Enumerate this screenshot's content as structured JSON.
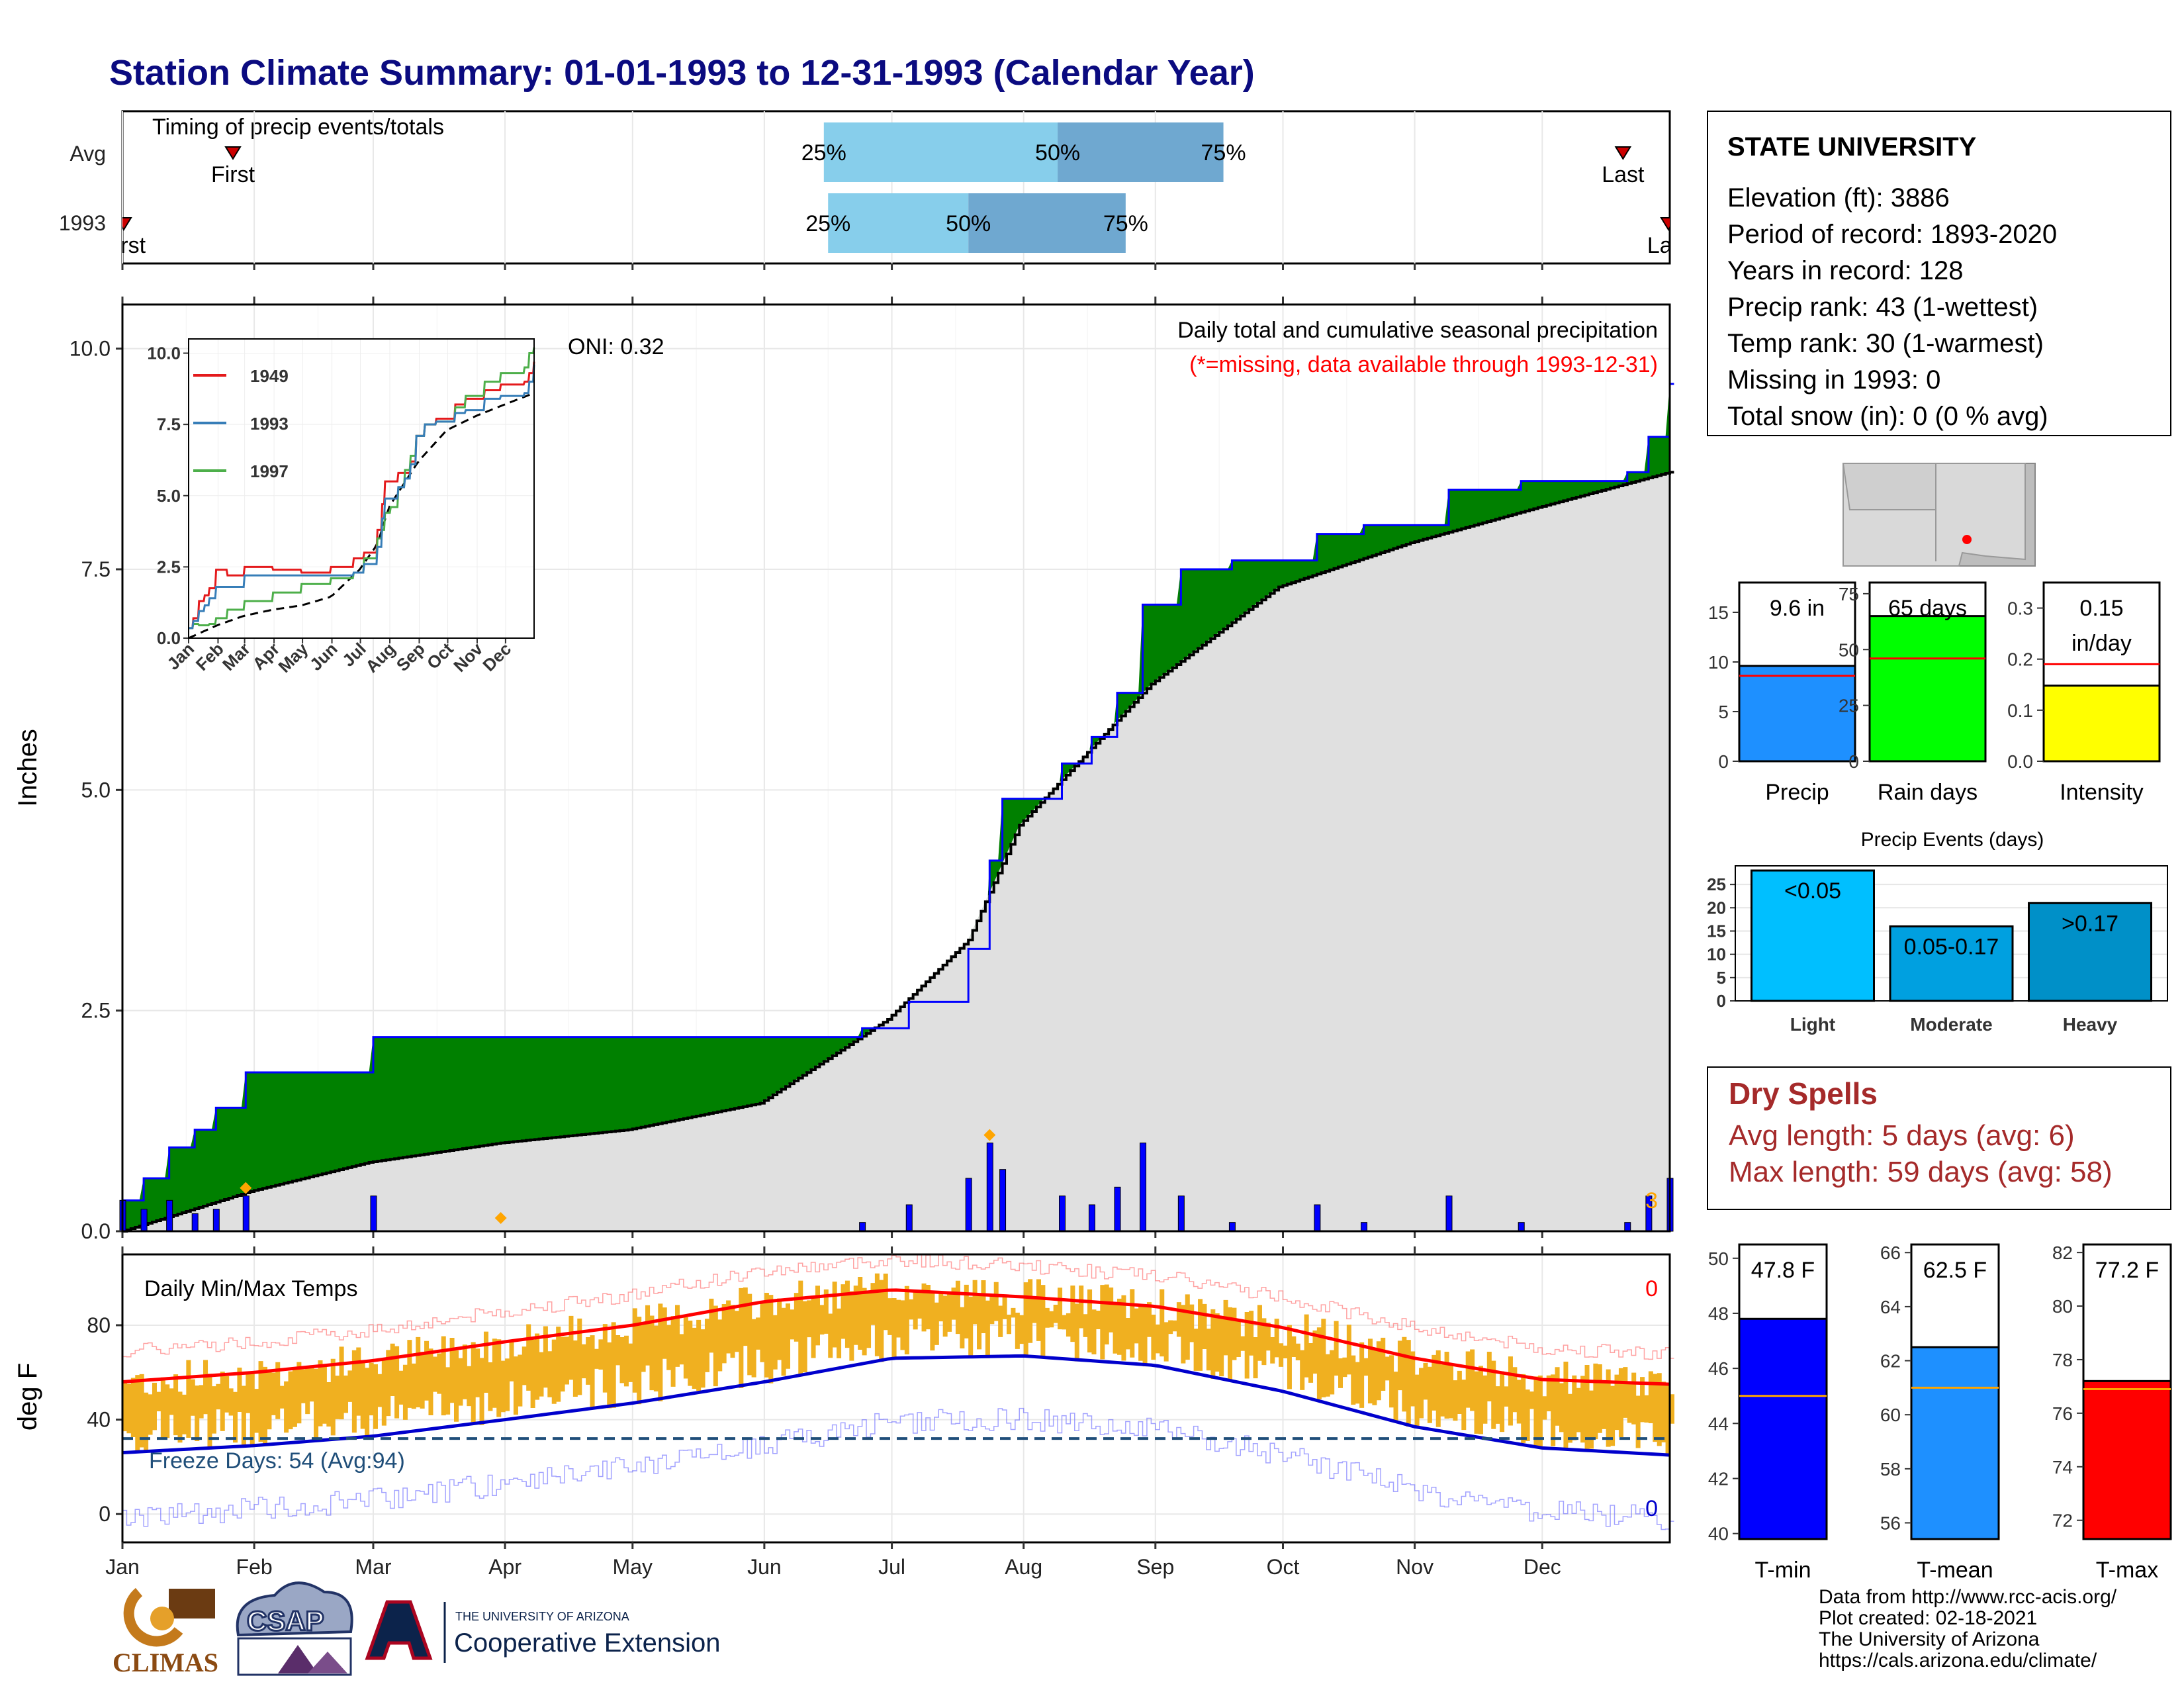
{
  "title": "Station Climate Summary: 01-01-1993 to 12-31-1993 (Calendar Year)",
  "timing_panel": {
    "label": "Timing of precip events/totals",
    "rows": [
      {
        "name": "Avg",
        "first_label": "First",
        "last_label": "Last",
        "p25": "25%",
        "p50": "50%",
        "p75": "75%",
        "first_day": 27,
        "last_day": 354,
        "p25_day": 166,
        "p50_day": 221,
        "p75_day": 260
      },
      {
        "name": "1993",
        "first_label": "First",
        "last_label": "Last",
        "p25": "25%",
        "p50": "50%",
        "p75": "75%",
        "first_day": 1,
        "last_day": 365,
        "p25_day": 167,
        "p50_day": 200,
        "p75_day": 237
      }
    ]
  },
  "main_panel": {
    "ylabel": "Inches",
    "yticks": [
      "0.0",
      "2.5",
      "5.0",
      "7.5",
      "10.0"
    ],
    "annotation_title": "Daily total and cumulative seasonal precipitation",
    "annotation_sub": "(*=missing, data available through 1993-12-31)",
    "oni": "ONI: 0.32",
    "corner_count": "3",
    "colors": {
      "surplus": "#008000",
      "normal": "#e0e0e0",
      "cumulative": "#0000ff",
      "daily_bar": "#0000ff",
      "marker": "#ffa500"
    }
  },
  "inset": {
    "yticks": [
      "0.0",
      "2.5",
      "5.0",
      "7.5",
      "10.0"
    ],
    "months": [
      "Jan",
      "Feb",
      "Mar",
      "Apr",
      "May",
      "Jun",
      "Jul",
      "Aug",
      "Sep",
      "Oct",
      "Nov",
      "Dec"
    ],
    "legend": [
      {
        "name": "1949",
        "color": "#e41a1c"
      },
      {
        "name": "1993",
        "color": "#377eb8"
      },
      {
        "name": "1997",
        "color": "#4daf4a"
      }
    ]
  },
  "temp_panel": {
    "ylabel": "deg F",
    "label": "Daily Min/Max Temps",
    "freeze": "Freeze Days: 54 (Avg:94)",
    "yticks": [
      "0",
      "40",
      "80"
    ],
    "count_top": "0",
    "count_bottom": "0",
    "colors": {
      "bars": "#f0b020",
      "max_line": "#ff0000",
      "min_line": "#0000cc",
      "freeze_line": "#1f4e79"
    }
  },
  "months": [
    "Jan",
    "Feb",
    "Mar",
    "Apr",
    "May",
    "Jun",
    "Jul",
    "Aug",
    "Sep",
    "Oct",
    "Nov",
    "Dec"
  ],
  "station": {
    "name": "STATE UNIVERSITY",
    "lines": [
      "Elevation (ft): 3886",
      "Period of record: 1893-2020",
      "Years in record: 128",
      "Precip rank: 43 (1-wettest)",
      "Temp rank: 30 (1-warmest)",
      "Missing in 1993: 0",
      "Total snow (in): 0 (0 % avg)"
    ]
  },
  "mini_bars": [
    {
      "label": "Precip",
      "value_text": "9.6 in",
      "value": 9.6,
      "avg": 8.6,
      "ymax": 18,
      "ticks": [
        "0",
        "5",
        "10",
        "15"
      ],
      "tick_vals": [
        0,
        5,
        10,
        15
      ],
      "color": "#1e90ff"
    },
    {
      "label": "Rain days",
      "value_text": "65 days",
      "value": 65,
      "avg": 46,
      "ymax": 80,
      "ticks": [
        "0",
        "25",
        "50",
        "75"
      ],
      "tick_vals": [
        0,
        25,
        50,
        75
      ],
      "color": "#00ff00"
    },
    {
      "label": "Intensity",
      "value_text": "0.15",
      "value_text2": "in/day",
      "value": 0.148,
      "avg": 0.19,
      "ymax": 0.35,
      "ticks": [
        "0.0",
        "0.1",
        "0.2",
        "0.3"
      ],
      "tick_vals": [
        0,
        0.1,
        0.2,
        0.3
      ],
      "color": "#ffff00"
    }
  ],
  "precip_events": {
    "title": "Precip Events (days)",
    "ticks": [
      "0",
      "5",
      "10",
      "15",
      "20",
      "25"
    ],
    "categories": [
      "Light",
      "Moderate",
      "Heavy"
    ],
    "bar_labels": [
      "<0.05",
      "0.05-0.17",
      ">0.17"
    ],
    "values": [
      28,
      16,
      21
    ],
    "colors": [
      "#00bfff",
      "#00a0e0",
      "#0090c8"
    ]
  },
  "dry_spells": {
    "title": "Dry Spells",
    "avg": "Avg length: 5 days (avg: 6)",
    "max": "Max length: 59 days (avg: 58)"
  },
  "temp_bars": [
    {
      "label": "T-min",
      "value_text": "47.8 F",
      "value": 47.8,
      "avg": 45.0,
      "ymin": 39.8,
      "ymax": 50.5,
      "ticks": [
        "40",
        "42",
        "44",
        "46",
        "48",
        "50"
      ],
      "tick_vals": [
        40,
        42,
        44,
        46,
        48,
        50
      ],
      "color": "#0000ff"
    },
    {
      "label": "T-mean",
      "value_text": "62.5 F",
      "value": 62.5,
      "avg": 61.0,
      "ymin": 55.4,
      "ymax": 66.3,
      "ticks": [
        "56",
        "58",
        "60",
        "62",
        "64",
        "66"
      ],
      "tick_vals": [
        56,
        58,
        60,
        62,
        64,
        66
      ],
      "color": "#1e90ff"
    },
    {
      "label": "T-max",
      "value_text": "77.2 F",
      "value": 77.2,
      "avg": 76.9,
      "ymin": 71.3,
      "ymax": 82.3,
      "ticks": [
        "72",
        "74",
        "76",
        "78",
        "80",
        "82"
      ],
      "tick_vals": [
        72,
        74,
        76,
        78,
        80,
        82
      ],
      "color": "#ff0000"
    }
  ],
  "footer": {
    "lines": [
      "Data from http://www.rcc-acis.org/",
      "Plot created: 02-18-2021",
      "The University of Arizona",
      "https://cals.arizona.edu/climate/"
    ]
  },
  "logos": {
    "climas": "CLIMAS",
    "csap": "CSAP",
    "ua_small": "THE UNIVERSITY OF ARIZONA",
    "ua_big": "Cooperative Extension"
  },
  "chart_data": [
    {
      "type": "area",
      "title": "Daily total and cumulative seasonal precipitation",
      "ylabel": "Inches",
      "ylim": [
        0,
        10.5
      ],
      "x_months": [
        "Jan",
        "Feb",
        "Mar",
        "Apr",
        "May",
        "Jun",
        "Jul",
        "Aug",
        "Sep",
        "Oct",
        "Nov",
        "Dec"
      ],
      "series": [
        {
          "name": "1993 cumulative",
          "x": [
            1,
            6,
            12,
            18,
            23,
            30,
            42,
            60,
            90,
            120,
            151,
            175,
            186,
            200,
            205,
            208,
            214,
            222,
            229,
            235,
            241,
            250,
            262,
            282,
            293,
            313,
            330,
            355,
            360,
            365
          ],
          "values": [
            0.35,
            0.6,
            0.95,
            1.15,
            1.4,
            1.8,
            1.8,
            2.2,
            2.2,
            2.2,
            2.2,
            2.3,
            2.6,
            3.2,
            4.2,
            4.9,
            4.9,
            5.3,
            5.6,
            6.1,
            7.1,
            7.5,
            7.6,
            7.9,
            8.0,
            8.4,
            8.5,
            8.6,
            9.0,
            9.6
          ]
        },
        {
          "name": "Average cumulative",
          "x": [
            1,
            31,
            59,
            90,
            120,
            151,
            181,
            200,
            212,
            243,
            273,
            304,
            334,
            365
          ],
          "values": [
            0.0,
            0.45,
            0.78,
            1.0,
            1.15,
            1.45,
            2.4,
            3.3,
            4.6,
            6.2,
            7.3,
            7.8,
            8.2,
            8.6
          ]
        }
      ]
    },
    {
      "type": "line",
      "title": "Daily Min/Max Temps",
      "ylabel": "deg F",
      "ylim": [
        -12,
        110
      ],
      "series": [
        {
          "name": "Normal max",
          "x": [
            1,
            32,
            60,
            91,
            121,
            152,
            182,
            213,
            244,
            274,
            305,
            335,
            365
          ],
          "values": [
            56,
            60,
            65,
            73,
            80,
            90,
            95,
            92,
            88,
            79,
            66,
            57,
            55
          ]
        },
        {
          "name": "Normal min",
          "x": [
            1,
            32,
            60,
            91,
            121,
            152,
            182,
            213,
            244,
            274,
            305,
            335,
            365
          ],
          "values": [
            26,
            29,
            33,
            40,
            47,
            56,
            66,
            67,
            63,
            52,
            37,
            28,
            25
          ]
        }
      ]
    }
  ]
}
